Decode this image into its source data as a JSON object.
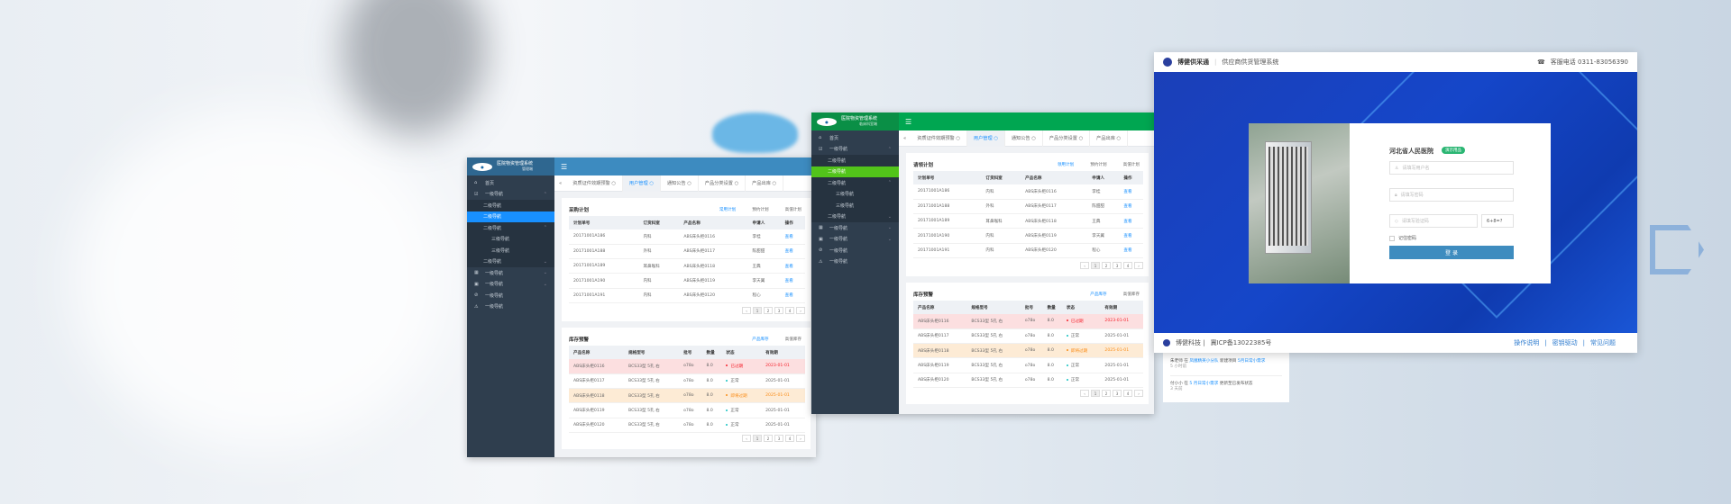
{
  "colors": {
    "blue_header": "#3d8bc0",
    "blue_active": "#1890ff",
    "green_header": "#00a651",
    "green_active": "#52c41a",
    "expired": "#f5222d",
    "expiring": "#fa8c16",
    "normal": "#13c2c2",
    "link": "#1890ff"
  },
  "windows": [
    {
      "app_title": "医院物资管理系统",
      "app_subtitle": "管理端",
      "menu_icon": "☰",
      "sidebar": [
        {
          "label": "首页",
          "icon": "⌂",
          "level": 1
        },
        {
          "label": "一级导航",
          "icon": "☑",
          "level": 1,
          "chev": "⌃"
        },
        {
          "label": "二级导航",
          "level": 2
        },
        {
          "label": "二级导航",
          "level": 2,
          "active": true
        },
        {
          "label": "二级导航",
          "level": 2,
          "chev": "⌃"
        },
        {
          "label": "三级导航",
          "level": 3
        },
        {
          "label": "三级导航",
          "level": 3
        },
        {
          "label": "二级导航",
          "level": 2,
          "chev": "⌄"
        },
        {
          "label": "一级导航",
          "icon": "▦",
          "level": 1,
          "chev": "⌄"
        },
        {
          "label": "一级导航",
          "icon": "▣",
          "level": 1,
          "chev": "⌄"
        },
        {
          "label": "一级导航",
          "icon": "⊘",
          "level": 1
        },
        {
          "label": "一级导航",
          "icon": "⚠",
          "level": 1
        }
      ],
      "tabs": [
        "资质证件效期预警",
        "用户管理",
        "通知公告",
        "产品分类设置",
        "产品出库"
      ],
      "active_tab": 1,
      "plan": {
        "title": "采购计划",
        "subtabs": [
          "常用计划",
          "预约计划",
          "高值计划"
        ],
        "headers": [
          "计划单号",
          "订货科室",
          "产品名称",
          "申请人",
          "操作"
        ],
        "rows": [
          [
            "20171001A186",
            "内科",
            "ABS床头柜0116",
            "李桂",
            "查看"
          ],
          [
            "20171001A188",
            "外科",
            "ABS床头柜0117",
            "陈甜甜",
            "查看"
          ],
          [
            "20171001A189",
            "耳鼻喉科",
            "ABS床头柜0118",
            "王典",
            "查看"
          ],
          [
            "20171001A190",
            "内科",
            "ABS床头柜0119",
            "李天翼",
            "查看"
          ],
          [
            "20171001A191",
            "内科",
            "ABS床头柜0120",
            "程心",
            "查看"
          ]
        ]
      },
      "stock": {
        "title": "库存预警",
        "subtabs": [
          "产品库存",
          "高值库存"
        ],
        "headers": [
          "产品名称",
          "规格型号",
          "批号",
          "数量",
          "状态",
          "有效期"
        ],
        "rows": [
          [
            "ABS床头柜0116",
            "BCS33型 5孔 右",
            "o78o",
            "8.0",
            "已过期",
            "2023-01-01"
          ],
          [
            "ABS床头柜0117",
            "BCS33型 5孔 右",
            "o78o",
            "8.0",
            "正常",
            "2025-01-01"
          ],
          [
            "ABS床头柜0118",
            "BCS33型 5孔 右",
            "o78o",
            "8.0",
            "即将过期",
            "2025-01-01"
          ],
          [
            "ABS床头柜0119",
            "BCS33型 5孔 右",
            "o78o",
            "8.0",
            "正常",
            "2025-01-01"
          ],
          [
            "ABS床头柜0120",
            "BCS33型 5孔 右",
            "o78o",
            "8.0",
            "正常",
            "2025-01-01"
          ]
        ]
      },
      "pager": [
        "‹",
        "1",
        "2",
        "3",
        "4",
        "›"
      ]
    },
    {
      "app_title": "医院物资管理系统",
      "app_subtitle": "临床科室端",
      "menu_icon": "☰",
      "sidebar": [
        {
          "label": "首页",
          "icon": "⌂",
          "level": 1
        },
        {
          "label": "一级导航",
          "icon": "☑",
          "level": 1,
          "chev": "⌃"
        },
        {
          "label": "二级导航",
          "level": 2
        },
        {
          "label": "二级导航",
          "level": 2,
          "active": true
        },
        {
          "label": "二级导航",
          "level": 2,
          "chev": "⌃"
        },
        {
          "label": "三级导航",
          "level": 3
        },
        {
          "label": "三级导航",
          "level": 3
        },
        {
          "label": "二级导航",
          "level": 2,
          "chev": "⌄"
        },
        {
          "label": "一级导航",
          "icon": "▦",
          "level": 1,
          "chev": "⌄"
        },
        {
          "label": "一级导航",
          "icon": "▣",
          "level": 1,
          "chev": "⌄"
        },
        {
          "label": "一级导航",
          "icon": "⊘",
          "level": 1
        },
        {
          "label": "一级导航",
          "icon": "⚠",
          "level": 1
        }
      ],
      "tabs": [
        "资质证件效期预警",
        "用户管理",
        "通知公告",
        "产品分类设置",
        "产品出库"
      ],
      "active_tab": 1,
      "plan": {
        "title": "请领计划",
        "subtabs": [
          "领用计划",
          "预约计划",
          "高值计划"
        ],
        "headers": [
          "计划单号",
          "订货科室",
          "产品名称",
          "申请人",
          "操作"
        ],
        "rows": [
          [
            "20171001A186",
            "内科",
            "ABS床头柜0116",
            "李桂",
            "查看"
          ],
          [
            "20171001A188",
            "外科",
            "ABS床头柜0117",
            "陈甜甜",
            "查看"
          ],
          [
            "20171001A189",
            "耳鼻喉科",
            "ABS床头柜0118",
            "王典",
            "查看"
          ],
          [
            "20171001A190",
            "内科",
            "ABS床头柜0119",
            "李天翼",
            "查看"
          ],
          [
            "20171001A191",
            "内科",
            "ABS床头柜0120",
            "程心",
            "查看"
          ]
        ]
      },
      "stock": {
        "title": "库存预警",
        "subtabs": [
          "产品库存",
          "高值库存"
        ],
        "headers": [
          "产品名称",
          "规格型号",
          "批号",
          "数量",
          "状态",
          "有效期"
        ],
        "rows": [
          [
            "ABS床头柜0116",
            "BCS33型 5孔 右",
            "o78o",
            "8.0",
            "已过期",
            "2023-01-01"
          ],
          [
            "ABS床头柜0117",
            "BCS33型 5孔 右",
            "o78o",
            "8.0",
            "正常",
            "2025-01-01"
          ],
          [
            "ABS床头柜0118",
            "BCS33型 5孔 右",
            "o78o",
            "8.0",
            "即将过期",
            "2025-01-01"
          ],
          [
            "ABS床头柜0119",
            "BCS33型 5孔 右",
            "o78o",
            "8.0",
            "正常",
            "2025-01-01"
          ],
          [
            "ABS床头柜0120",
            "BCS33型 5孔 右",
            "o78o",
            "8.0",
            "正常",
            "2025-01-01"
          ]
        ]
      },
      "pager": [
        "‹",
        "1",
        "2",
        "3",
        "4",
        "›"
      ]
    }
  ],
  "login": {
    "brand": "博健供采通",
    "system": "供应商供货管理系统",
    "phone": "客服电话 0311-83056390",
    "hospital": "河北省人民医院",
    "badge": "演示用品",
    "username_placeholder": "请填写用户名",
    "password_placeholder": "请填写密码",
    "captcha_placeholder": "请填写验证码",
    "captcha": "6+8=?",
    "remember": "记住密码",
    "submit": "登 录",
    "footer_company": "博健科技 |",
    "footer_icp": "冀ICP备13022385号",
    "footer_links": [
      "操作说明",
      "密钥驱动",
      "常见问题"
    ],
    "separator": "|"
  },
  "activity": [
    {
      "user": "朱老师",
      "in": "在",
      "team": "凤凰精英小分队",
      "action": "新建项目",
      "project": "5月日常小需求",
      "time": "5 小时前"
    },
    {
      "user": "付小小",
      "in": "在",
      "team": "5 月日常小需求",
      "action": "更新至已发布状态",
      "project": "",
      "time": "3 天前"
    }
  ]
}
